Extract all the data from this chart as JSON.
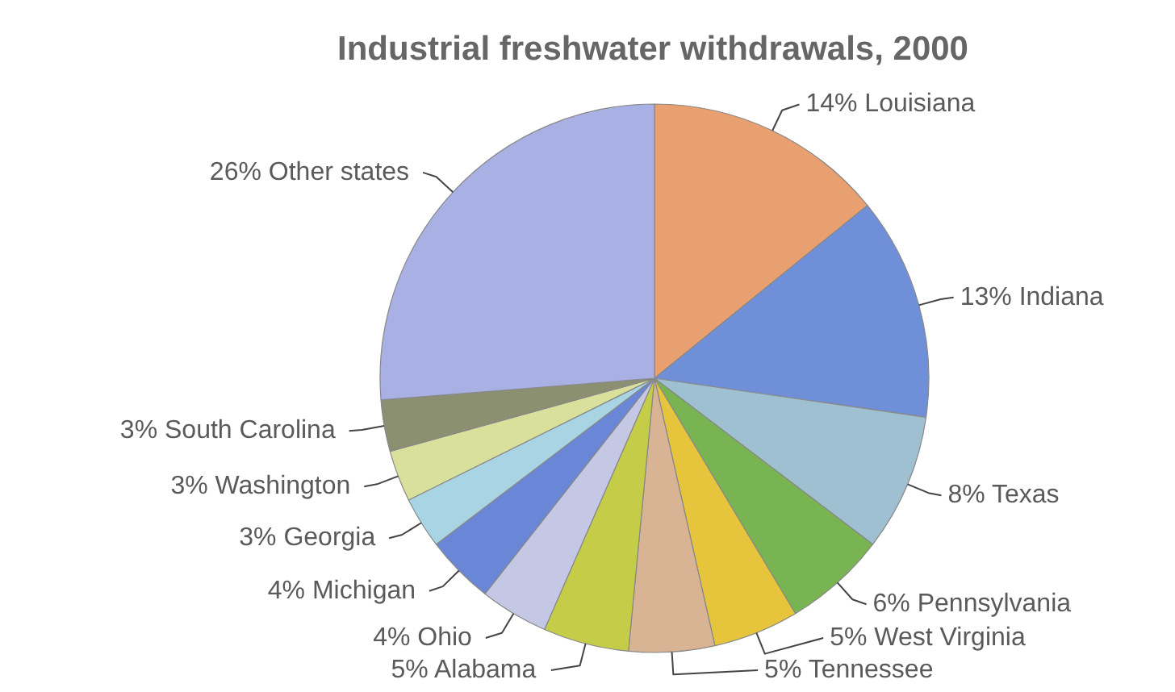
{
  "chart_data": {
    "type": "pie",
    "title": "Industrial freshwater withdrawals, 2000",
    "categories": [
      "Louisiana",
      "Indiana",
      "Texas",
      "Pennsylvania",
      "West Virginia",
      "Tennessee",
      "Alabama",
      "Ohio",
      "Michigan",
      "Georgia",
      "Washington",
      "South Carolina",
      "Other states"
    ],
    "values": [
      14,
      13,
      8,
      6,
      5,
      5,
      5,
      4,
      4,
      3,
      3,
      3,
      26
    ],
    "value_labels": [
      "14%",
      "13%",
      "8%",
      "6%",
      "5%",
      "5%",
      "5%",
      "4%",
      "4%",
      "3%",
      "3%",
      "3%",
      "26%"
    ],
    "colors": [
      "#e8a070",
      "#6f8fd8",
      "#9ec0d0",
      "#78b452",
      "#e6c43c",
      "#d8b494",
      "#c4cc48",
      "#c4c8e4",
      "#6a86d6",
      "#a8d4e4",
      "#d8e09c",
      "#8a9070",
      "#a8b0e4"
    ]
  }
}
